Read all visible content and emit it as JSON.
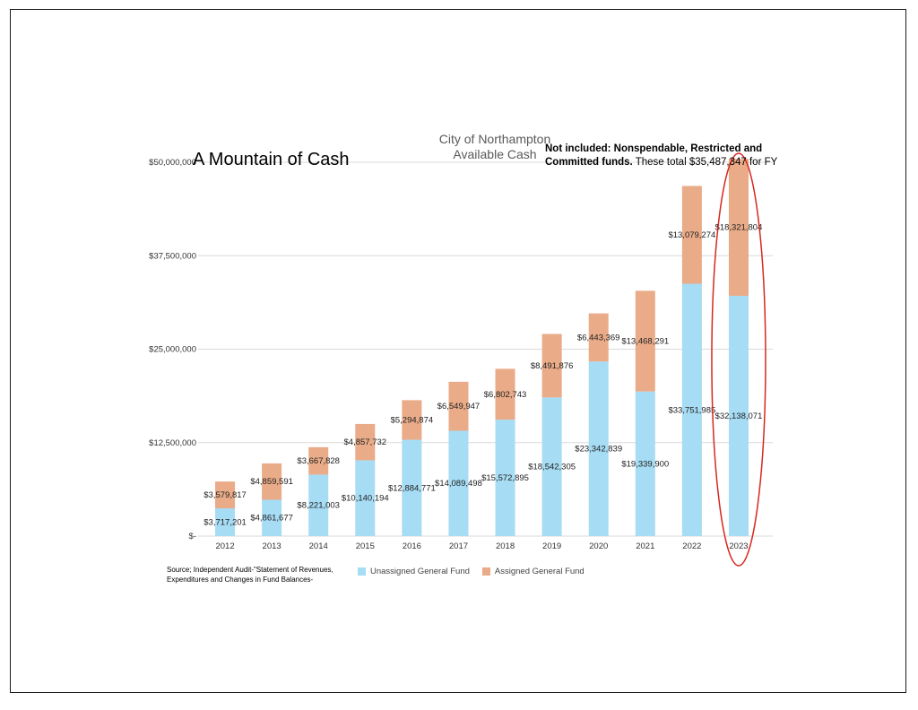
{
  "main_title": "A Mountain of Cash",
  "chart_title_lines": [
    "City of Northampton",
    "Available Cash"
  ],
  "note": {
    "bold": "Not included: Nonspendable, Restricted and Committed funds.",
    "normal": " These total $35,487,347 for FY"
  },
  "source": "Source; Independent Audit-\"Statement of Revenues, Expenditures and Changes in Fund Balances-",
  "colors": {
    "unassigned": "#a6dcf4",
    "assigned": "#e9ab88",
    "highlight_ellipse": "#d7281f"
  },
  "chart_data": {
    "type": "bar",
    "stacked": true,
    "categories": [
      "2012",
      "2013",
      "2014",
      "2015",
      "2016",
      "2017",
      "2018",
      "2019",
      "2020",
      "2021",
      "2022",
      "2023"
    ],
    "series": [
      {
        "name": "Unassigned General Fund",
        "values": [
          3717201,
          4861677,
          8221003,
          10140194,
          12884771,
          14089498,
          15572895,
          18542305,
          23342839,
          19339900,
          33751985,
          32138071
        ],
        "labels": [
          "$3,717,201",
          "$4,861,677",
          "$8,221,003",
          "$10,140,194",
          "$12,884,771",
          "$14,089,498",
          "$15,572,895",
          "$18,542,305",
          "$23,342,839",
          "$19,339,900",
          "$33,751,985",
          "$32,138,071"
        ]
      },
      {
        "name": "Assigned General Fund",
        "values": [
          3579817,
          4859591,
          3667828,
          4857732,
          5294874,
          6549947,
          6802743,
          8491876,
          6443369,
          13468291,
          13079274,
          18321804
        ],
        "labels": [
          "$3,579,817",
          "$4,859,591",
          "$3,667,828",
          "$4,857,732",
          "$5,294,874",
          "$6,549,947",
          "$6,802,743",
          "$8,491,876",
          "$6,443,369",
          "$13,468,291",
          "$13,079,274",
          "$18,321,804"
        ]
      }
    ],
    "yticks": [
      0,
      12500000,
      25000000,
      37500000,
      50000000
    ],
    "ytick_labels": [
      "$-",
      "$12,500,000",
      "$25,000,000",
      "$37,500,000",
      "$50,000,000"
    ],
    "ylim": [
      0,
      50000000
    ],
    "grid": true,
    "legend_position": "bottom",
    "highlighted_category": "2023"
  }
}
